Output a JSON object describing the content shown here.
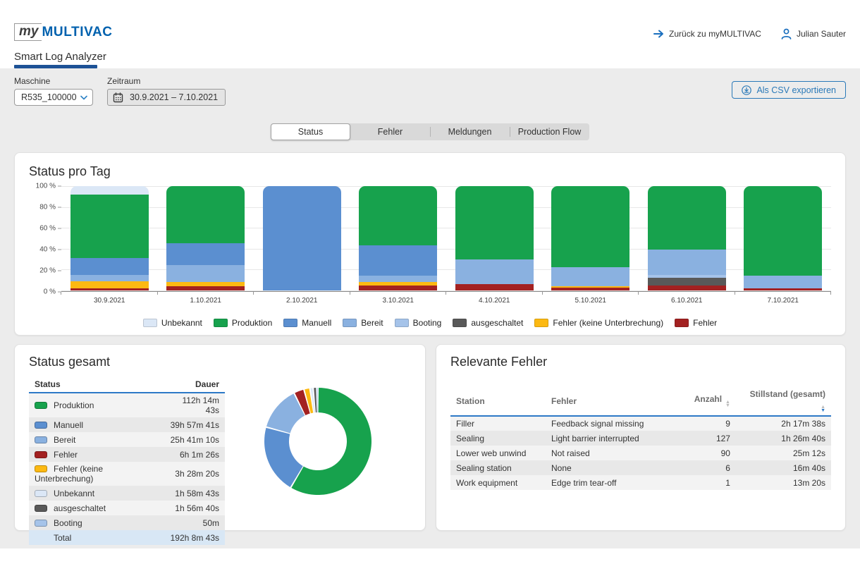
{
  "header": {
    "logo_my": "my",
    "logo_brand": "MULTIVAC",
    "app_tab": "Smart Log Analyzer",
    "back_link": "Zurück zu myMULTIVAC",
    "user_name": "Julian Sauter"
  },
  "filters": {
    "machine_label": "Maschine",
    "machine_value": "R535_100000",
    "period_label": "Zeitraum",
    "period_value": "30.9.2021 – 7.10.2021",
    "export_button": "Als CSV exportieren"
  },
  "view_tabs": [
    {
      "label": "Status",
      "active": true
    },
    {
      "label": "Fehler",
      "active": false
    },
    {
      "label": "Meldungen",
      "active": false
    },
    {
      "label": "Production Flow",
      "active": false
    }
  ],
  "status_colors": {
    "Unbekannt": "#dbe7f6",
    "Produktion": "#17a24d",
    "Manuell": "#5b8fd0",
    "Bereit": "#8ab1e0",
    "Booting": "#a5c3e9",
    "ausgeschaltet": "#595959",
    "Fehler (keine Unterbrechung)": "#fcb912",
    "Fehler": "#a32121"
  },
  "chart_data": [
    {
      "type": "bar",
      "stacked": true,
      "title": "Status pro Tag",
      "categories": [
        "30.9.2021",
        "1.10.2021",
        "2.10.2021",
        "3.10.2021",
        "4.10.2021",
        "5.10.2021",
        "6.10.2021",
        "7.10.2021"
      ],
      "series": [
        {
          "name": "Fehler",
          "values": [
            2,
            4,
            0,
            5,
            6,
            3,
            5,
            2
          ]
        },
        {
          "name": "Fehler (keine Unterbrechung)",
          "values": [
            7,
            4,
            0,
            3,
            0,
            1,
            0,
            0
          ]
        },
        {
          "name": "ausgeschaltet",
          "values": [
            0,
            0,
            0,
            0,
            0,
            0,
            7,
            0
          ]
        },
        {
          "name": "Booting",
          "values": [
            0,
            0,
            0,
            0,
            0,
            0,
            3,
            0
          ]
        },
        {
          "name": "Bereit",
          "values": [
            6,
            16,
            0,
            6,
            24,
            18,
            24,
            12
          ]
        },
        {
          "name": "Manuell",
          "values": [
            16,
            21,
            100,
            29,
            0,
            0,
            0,
            0
          ]
        },
        {
          "name": "Produktion",
          "values": [
            61,
            55,
            0,
            57,
            70,
            78,
            61,
            86
          ]
        },
        {
          "name": "Unbekannt",
          "values": [
            8,
            0,
            0,
            0,
            0,
            0,
            0,
            0
          ]
        }
      ],
      "ylim": [
        0,
        100
      ],
      "yticks": [
        {
          "value": 0,
          "label": "0 %"
        },
        {
          "value": 20,
          "label": "20 %"
        },
        {
          "value": 40,
          "label": "40 %"
        },
        {
          "value": 60,
          "label": "60 %"
        },
        {
          "value": 80,
          "label": "80 %"
        },
        {
          "value": 100,
          "label": "100 %"
        }
      ],
      "grid": true,
      "legend_position": "bottom",
      "legend": [
        "Unbekannt",
        "Produktion",
        "Manuell",
        "Bereit",
        "Booting",
        "ausgeschaltet",
        "Fehler (keine Unterbrechung)",
        "Fehler"
      ]
    },
    {
      "type": "pie",
      "subtype": "donut",
      "title": "Status gesamt",
      "inner_radius_ratio": 0.54,
      "start_angle_deg": 0,
      "direction": "clockwise",
      "labels": [
        "Produktion",
        "Manuell",
        "Bereit",
        "Fehler",
        "Fehler (keine Unterbrechung)",
        "Unbekannt",
        "ausgeschaltet",
        "Booting"
      ],
      "values": [
        58.4,
        20.8,
        13.4,
        3.1,
        1.8,
        1.0,
        1.0,
        0.4
      ]
    }
  ],
  "status_pro_tag": {
    "title": "Status pro Tag"
  },
  "status_gesamt": {
    "title": "Status gesamt",
    "columns": [
      "Status",
      "Dauer"
    ],
    "rows": [
      {
        "status": "Produktion",
        "dauer": "112h 14m 43s"
      },
      {
        "status": "Manuell",
        "dauer": "39h 57m 41s"
      },
      {
        "status": "Bereit",
        "dauer": "25h 41m 10s"
      },
      {
        "status": "Fehler",
        "dauer": "6h 1m 26s"
      },
      {
        "status": "Fehler (keine Unterbrechung)",
        "dauer": "3h 28m 20s"
      },
      {
        "status": "Unbekannt",
        "dauer": "1h 58m 43s"
      },
      {
        "status": "ausgeschaltet",
        "dauer": "1h 56m 40s"
      },
      {
        "status": "Booting",
        "dauer": "50m"
      }
    ],
    "total_label": "Total",
    "total_value": "192h 8m 43s"
  },
  "relevante_fehler": {
    "title": "Relevante Fehler",
    "columns": [
      "Station",
      "Fehler",
      "Anzahl",
      "Stillstand (gesamt)"
    ],
    "sorted_column": "Stillstand (gesamt)",
    "sort_direction": "desc",
    "rows": [
      {
        "station": "Filler",
        "fehler": "Feedback signal missing",
        "anzahl": "9",
        "stillstand": "2h 17m 38s"
      },
      {
        "station": "Sealing",
        "fehler": "Light barrier interrupted",
        "anzahl": "127",
        "stillstand": "1h 26m 40s"
      },
      {
        "station": "Lower web unwind",
        "fehler": "Not raised",
        "anzahl": "90",
        "stillstand": "25m 12s"
      },
      {
        "station": "Sealing station",
        "fehler": "None",
        "anzahl": "6",
        "stillstand": "16m 40s"
      },
      {
        "station": "Work equipment",
        "fehler": "Edge trim tear-off",
        "anzahl": "1",
        "stillstand": "13m 20s"
      }
    ]
  }
}
